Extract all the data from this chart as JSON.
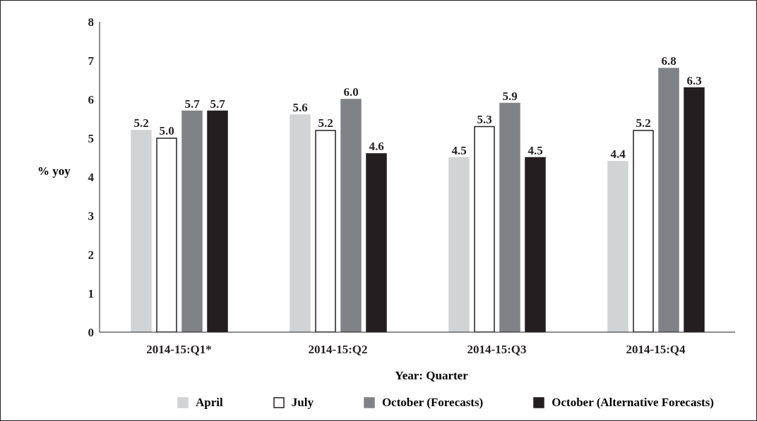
{
  "chart_data": {
    "type": "bar",
    "xlabel": "Year: Quarter",
    "ylabel": "% yoy",
    "categories": [
      "2014-15:Q1*",
      "2014-15:Q2",
      "2014-15:Q3",
      "2014-15:Q4"
    ],
    "series": [
      {
        "name": "April",
        "color": "#d1d3d4",
        "values": [
          5.2,
          5.6,
          4.5,
          4.4
        ],
        "value_labels": [
          "5.2",
          "5.6",
          "4.5",
          "4.4"
        ]
      },
      {
        "name": "July",
        "color": "#ffffff",
        "values": [
          5.0,
          5.2,
          5.3,
          5.2
        ],
        "value_labels": [
          "5.0",
          "5.2",
          "5.3",
          "5.2"
        ]
      },
      {
        "name": "October (Forecasts)",
        "color": "#808285",
        "values": [
          5.7,
          6.0,
          5.9,
          6.8
        ],
        "value_labels": [
          "5.7",
          "6.0",
          "5.9",
          "6.8"
        ]
      },
      {
        "name": "October (Alternative Forecasts)",
        "color": "#231f20",
        "values": [
          5.7,
          4.6,
          4.5,
          6.3
        ],
        "value_labels": [
          "5.7",
          "4.6",
          "4.5",
          "6.3"
        ]
      }
    ],
    "ylim": [
      0,
      8
    ],
    "yticks": [
      0,
      1,
      2,
      3,
      4,
      5,
      6,
      7,
      8
    ],
    "grid": false,
    "legend": "bottom"
  }
}
